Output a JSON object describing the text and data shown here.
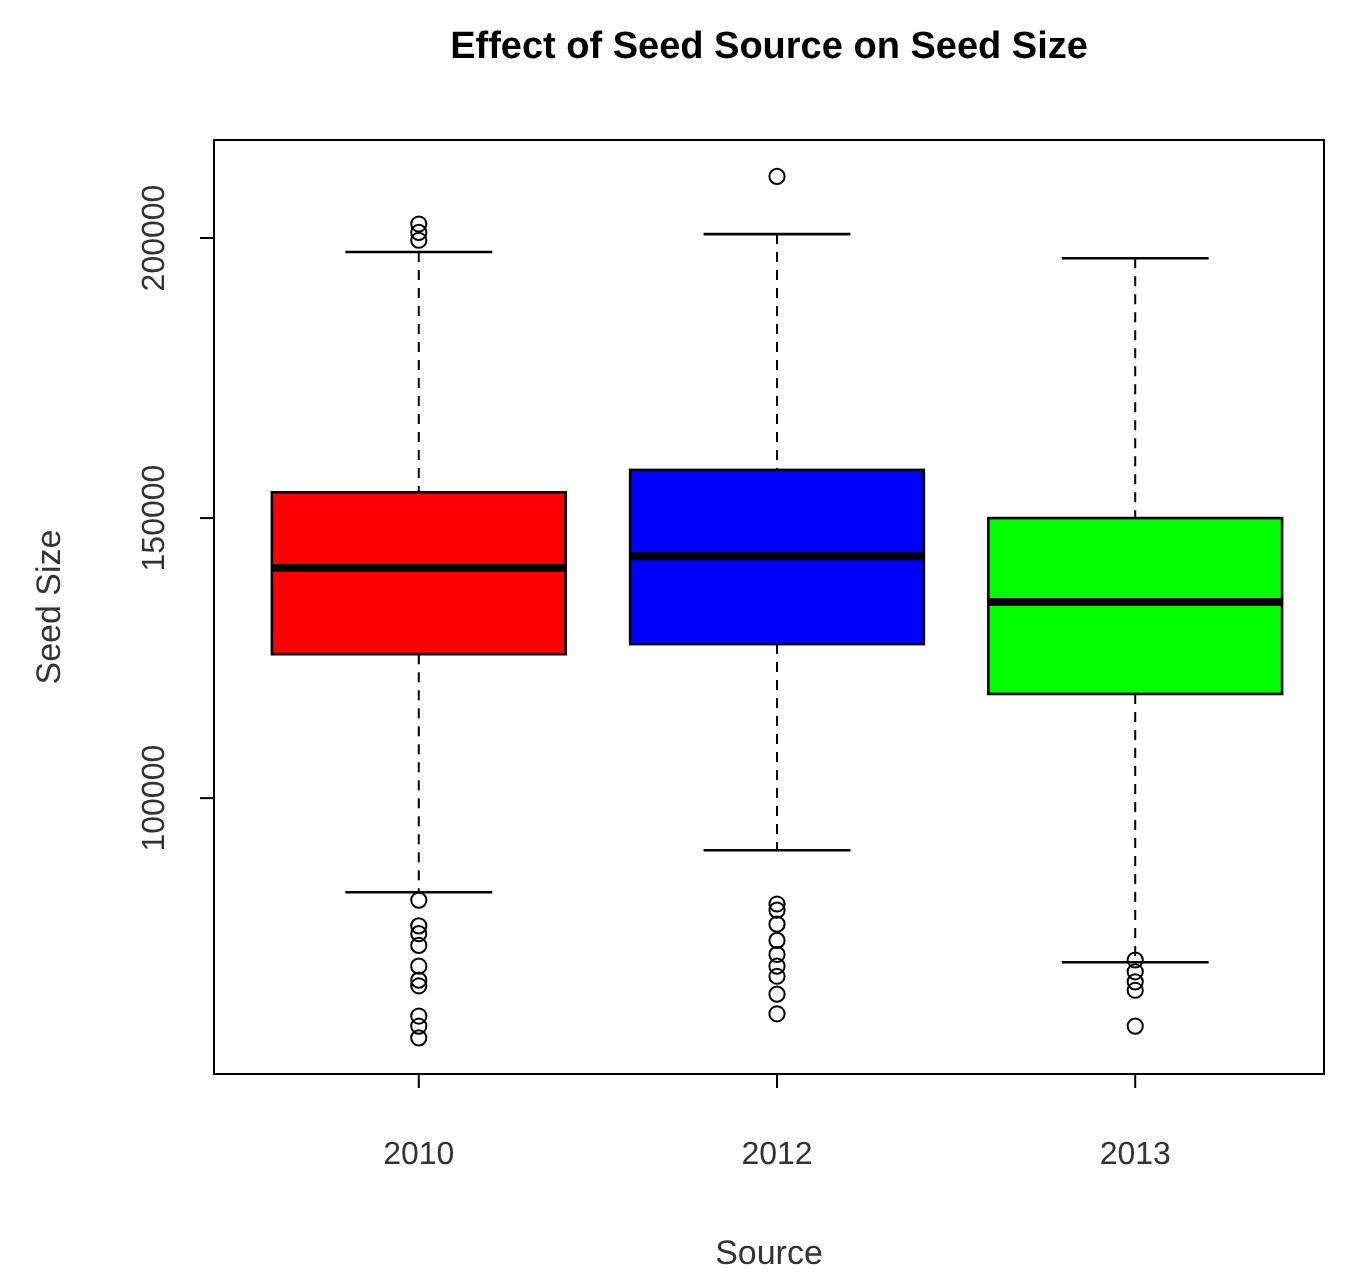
{
  "chart_data": {
    "type": "box",
    "title": "Effect of Seed Source on Seed Size",
    "xlabel": "Source",
    "ylabel": "Seed Size",
    "categories": [
      "2010",
      "2012",
      "2013"
    ],
    "colors": [
      "#ff0000",
      "#0000ff",
      "#00ff00"
    ],
    "boxes": [
      {
        "low": 83200,
        "q1": 125700,
        "median": 141100,
        "q3": 154600,
        "high": 197500,
        "outliers": [
          202500,
          201000,
          199600,
          81800,
          77200,
          75800,
          73700,
          70000,
          67500,
          66500,
          61100,
          59300,
          57200
        ]
      },
      {
        "low": 90700,
        "q1": 127500,
        "median": 143200,
        "q3": 158600,
        "high": 200700,
        "outliers": [
          211000,
          81100,
          80000,
          77500,
          74600,
          72100,
          70000,
          68200,
          65000,
          61500
        ]
      },
      {
        "low": 70700,
        "q1": 118600,
        "median": 135000,
        "q3": 150000,
        "high": 196400,
        "outliers": [
          71100,
          69000,
          67200,
          65700,
          59300
        ]
      }
    ],
    "ylim": [
      50750,
      217500
    ],
    "yticks": [
      100000,
      150000,
      200000
    ],
    "grid": false
  }
}
